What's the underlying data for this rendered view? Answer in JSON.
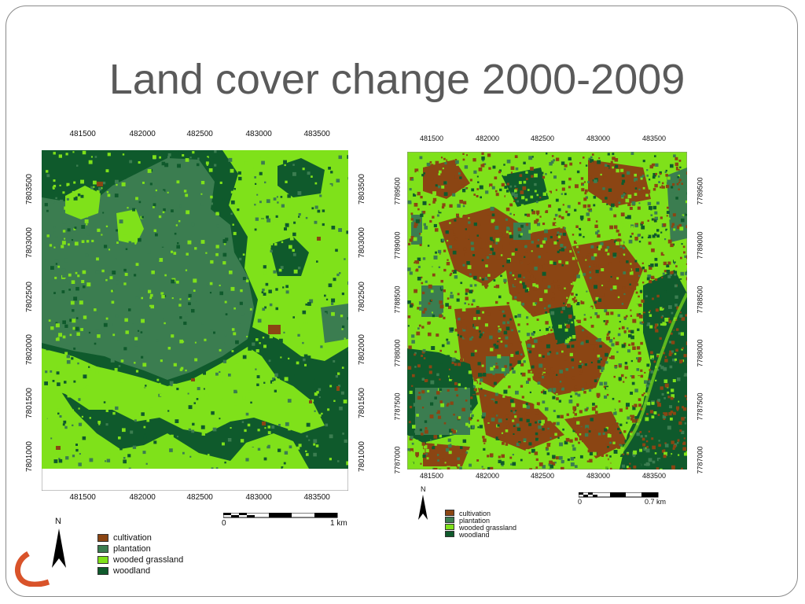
{
  "slide": {
    "title": "Land cover change 2000-2009",
    "accent_color": "#d9532a"
  },
  "classes": [
    {
      "key": "cultivation",
      "label": "cultivation",
      "color": "#8b4513"
    },
    {
      "key": "plantation",
      "label": "plantation",
      "color": "#3b7d50"
    },
    {
      "key": "wooded",
      "label": "wooded grassland",
      "color": "#7fe11a"
    },
    {
      "key": "woodland",
      "label": "woodland",
      "color": "#0f5a2c"
    }
  ],
  "maps": [
    {
      "id": "map-2000",
      "x_ticks_top": [
        "481500",
        "482000",
        "482500",
        "483000",
        "483500"
      ],
      "x_ticks_bottom": [
        "481500",
        "482000",
        "482500",
        "483000",
        "483500"
      ],
      "y_ticks_left": [
        "7803500",
        "7803000",
        "7802500",
        "7802000",
        "7801500",
        "7801000"
      ],
      "y_ticks_right": [
        "7803500",
        "7803000",
        "7802500",
        "7802000",
        "7801500",
        "7801000"
      ],
      "scale": {
        "start": "0",
        "end": "1 km"
      },
      "north": "N"
    },
    {
      "id": "map-2009",
      "x_ticks_top": [
        "481500",
        "482000",
        "482500",
        "483000",
        "483500"
      ],
      "x_ticks_bottom": [
        "481500",
        "482000",
        "482500",
        "483000",
        "483500"
      ],
      "y_ticks_left": [
        "7789500",
        "7789000",
        "7788500",
        "7788000",
        "7787500",
        "7787000"
      ],
      "y_ticks_right": [
        "7789500",
        "7789000",
        "7788500",
        "7788000",
        "7787500",
        "7787000"
      ],
      "scale": {
        "start": "0",
        "end": "0.7 km"
      },
      "north": "N"
    }
  ]
}
